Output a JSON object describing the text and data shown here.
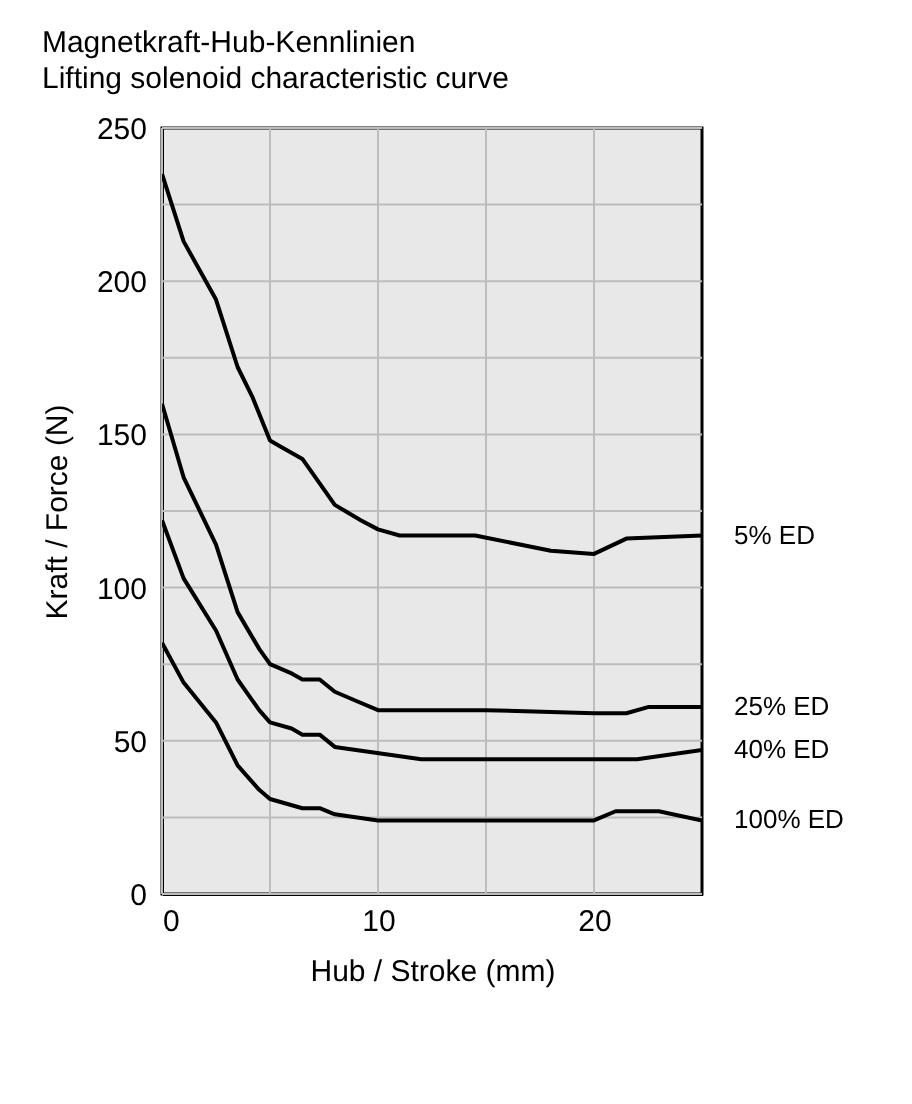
{
  "chart_data": {
    "type": "line",
    "title": "Magnetkraft-Hub-Kennlinien",
    "subtitle": "Lifting solenoid characteristic curve",
    "xlabel": "Hub / Stroke (mm)",
    "ylabel": "Kraft / Force (N)",
    "xlim": [
      0,
      25
    ],
    "xticks": [
      0,
      {
        "value": 5,
        "label": null
      },
      10,
      {
        "value": 15,
        "label": null
      },
      20
    ],
    "ylim": [
      0,
      250
    ],
    "yticks": [
      0,
      {
        "value": 25,
        "label": null
      },
      50,
      {
        "value": 75,
        "label": null
      },
      100,
      {
        "value": 125,
        "label": null
      },
      150,
      {
        "value": 175,
        "label": null
      },
      200,
      {
        "value": 225,
        "label": null
      },
      250
    ],
    "grid": true,
    "legend": false,
    "line_style": "solid",
    "series": [
      {
        "name": "5% ED",
        "color": "#000000",
        "x": [
          0,
          1,
          2.5,
          3.5,
          4.2,
          5,
          5.5,
          6.5,
          8,
          9.2,
          10,
          11,
          14.5,
          18,
          20,
          21.5,
          25
        ],
        "values": [
          235,
          213,
          194,
          172,
          162,
          148,
          146,
          142,
          127,
          122,
          119,
          117,
          117,
          112,
          111,
          116,
          117
        ]
      },
      {
        "name": "25% ED",
        "color": "#000000",
        "x": [
          0,
          1,
          2.5,
          3.5,
          4.5,
          5,
          6,
          6.5,
          7.3,
          8,
          9,
          10,
          15,
          20,
          21.5,
          22.5,
          25
        ],
        "values": [
          160,
          136,
          114,
          92,
          80,
          75,
          72,
          70,
          70,
          66,
          63,
          60,
          60,
          59,
          59,
          61,
          61
        ]
      },
      {
        "name": "40% ED",
        "color": "#000000",
        "x": [
          0,
          1,
          2.5,
          3.5,
          4.5,
          5,
          6,
          6.5,
          7.3,
          8,
          12,
          15,
          22,
          25
        ],
        "values": [
          122,
          103,
          86,
          70,
          60,
          56,
          54,
          52,
          52,
          48,
          44,
          44,
          44,
          47
        ]
      },
      {
        "name": "100% ED",
        "color": "#000000",
        "x": [
          0,
          1,
          2.5,
          3.5,
          4.5,
          5,
          6.5,
          7.3,
          8,
          10,
          15,
          20,
          21,
          23,
          25
        ],
        "values": [
          82,
          69,
          56,
          42,
          34,
          31,
          28,
          28,
          26,
          24,
          24,
          24,
          27,
          27,
          24
        ]
      }
    ]
  }
}
